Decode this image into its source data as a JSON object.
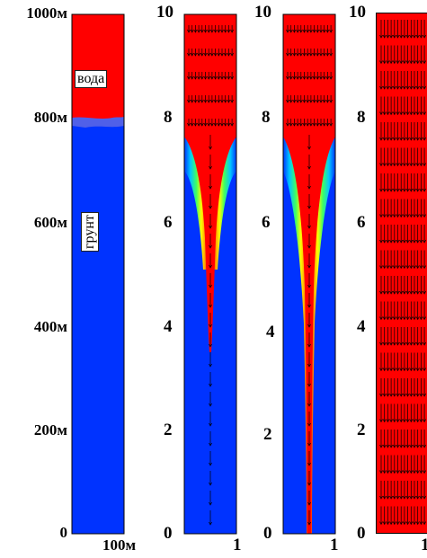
{
  "colors": {
    "water": "#ff0000",
    "soil": "#0033ff",
    "interface": "#5060e8",
    "gradient": [
      "#ff0000",
      "#ffa000",
      "#ffff00",
      "#40ff60",
      "#00c8ff",
      "#0033ff"
    ],
    "arrow": "#000000"
  },
  "panels": [
    {
      "id": "column",
      "y_ticks": [
        "1000м",
        "800м",
        "600м",
        "400м",
        "200м",
        "0"
      ],
      "x_tick": "100м",
      "labels": {
        "water": "вода",
        "soil": "грунт"
      }
    },
    {
      "id": "stage-1",
      "y_ticks": [
        "10",
        "8",
        "6",
        "4",
        "2",
        "0"
      ],
      "x_tick": "1"
    },
    {
      "id": "stage-2",
      "y_ticks": [
        "10",
        "8",
        "6",
        "4",
        "2",
        "0"
      ],
      "x_tick": "1"
    },
    {
      "id": "stage-3",
      "y_ticks": [
        "10",
        "8",
        "6",
        "4",
        "2",
        "0"
      ],
      "x_tick": "1"
    }
  ]
}
